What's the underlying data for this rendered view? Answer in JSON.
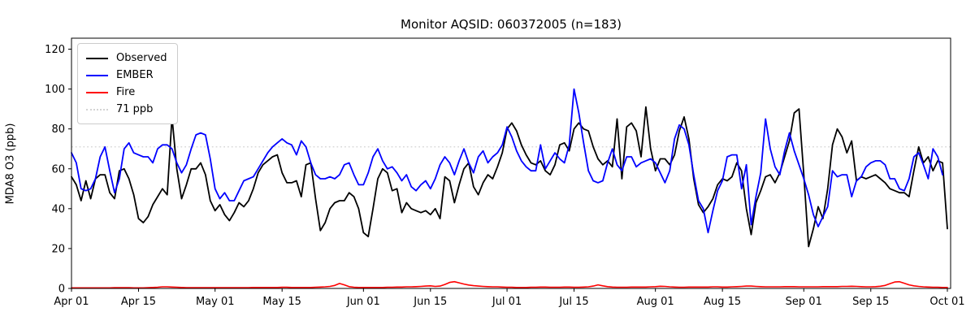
{
  "title": "Monitor AQSID: 060372005 (n=183)",
  "ylabel": "MDA8 O3 (ppb)",
  "legend": [
    {
      "label": "Observed",
      "color": "#000000",
      "style": "solid"
    },
    {
      "label": "EMBER",
      "color": "#0000ff",
      "style": "solid"
    },
    {
      "label": "Fire",
      "color": "#ff0000",
      "style": "solid"
    },
    {
      "label": "71 ppb",
      "color": "#d3d3d3",
      "style": "dotted"
    }
  ],
  "chart_data": {
    "type": "line",
    "title": "Monitor AQSID: 060372005 (n=183)",
    "xlabel": "",
    "ylabel": "MDA8 O3 (ppb)",
    "ylim": [
      0,
      125
    ],
    "y_ticks": [
      0,
      20,
      40,
      60,
      80,
      100,
      120
    ],
    "x_unit": "days since Apr 01",
    "x_range_days": [
      0,
      183
    ],
    "x_tick_days": [
      0,
      14,
      30,
      44,
      61,
      75,
      91,
      105,
      122,
      136,
      153,
      167,
      183
    ],
    "x_tick_labels": [
      "Apr 01",
      "Apr 15",
      "May 01",
      "May 15",
      "Jun 01",
      "Jun 15",
      "Jul 01",
      "Jul 15",
      "Aug 01",
      "Aug 15",
      "Sep 01",
      "Sep 15",
      "Oct 01"
    ],
    "grid": false,
    "legend_position": "upper left",
    "reference_line": {
      "value": 71,
      "label": "71 ppb",
      "color": "#d3d3d3",
      "style": "dotted"
    },
    "series": [
      {
        "name": "Observed",
        "color": "#000000",
        "values": [
          56,
          52,
          44,
          54,
          45,
          55,
          57,
          57,
          48,
          45,
          59,
          60,
          55,
          47,
          35,
          33,
          36,
          42,
          46,
          50,
          47,
          86,
          60,
          45,
          52,
          60,
          60,
          63,
          57,
          44,
          39,
          42,
          37,
          34,
          38,
          43,
          41,
          44,
          50,
          58,
          62,
          64,
          66,
          67,
          58,
          53,
          53,
          54,
          46,
          62,
          63,
          45,
          29,
          33,
          40,
          43,
          44,
          44,
          48,
          46,
          40,
          28,
          26,
          40,
          55,
          60,
          58,
          49,
          50,
          38,
          43,
          40,
          39,
          38,
          39,
          37,
          40,
          35,
          56,
          54,
          43,
          52,
          60,
          63,
          51,
          47,
          53,
          57,
          55,
          61,
          68,
          80,
          83,
          79,
          72,
          67,
          63,
          62,
          64,
          59,
          57,
          62,
          72,
          73,
          69,
          80,
          83,
          80,
          79,
          71,
          65,
          62,
          64,
          61,
          85,
          55,
          81,
          83,
          79,
          66,
          91,
          70,
          59,
          65,
          65,
          62,
          67,
          79,
          86,
          75,
          55,
          42,
          38,
          41,
          45,
          52,
          55,
          54,
          56,
          63,
          59,
          40,
          27,
          43,
          49,
          56,
          57,
          53,
          58,
          66,
          74,
          88,
          90,
          57,
          21,
          30,
          41,
          35,
          50,
          72,
          80,
          76,
          68,
          74,
          54,
          56,
          55,
          56,
          57,
          55,
          53,
          50,
          49,
          48,
          48,
          46,
          59,
          71,
          63,
          66,
          59,
          64,
          63,
          30
        ]
      },
      {
        "name": "EMBER",
        "color": "#0000ff",
        "values": [
          68,
          63,
          50,
          49,
          50,
          55,
          66,
          71,
          59,
          48,
          55,
          70,
          73,
          68,
          67,
          66,
          66,
          63,
          70,
          72,
          72,
          70,
          63,
          58,
          62,
          70,
          77,
          78,
          77,
          65,
          50,
          45,
          48,
          44,
          44,
          49,
          54,
          55,
          56,
          60,
          64,
          68,
          71,
          73,
          75,
          73,
          72,
          67,
          74,
          71,
          63,
          57,
          55,
          55,
          56,
          55,
          57,
          62,
          63,
          57,
          52,
          52,
          58,
          66,
          70,
          64,
          60,
          61,
          58,
          54,
          57,
          51,
          49,
          52,
          54,
          50,
          55,
          62,
          66,
          63,
          57,
          64,
          70,
          63,
          58,
          66,
          69,
          63,
          66,
          68,
          72,
          81,
          76,
          69,
          64,
          61,
          59,
          59,
          72,
          60,
          64,
          68,
          65,
          63,
          72,
          100,
          88,
          73,
          59,
          54,
          53,
          54,
          63,
          70,
          62,
          59,
          66,
          66,
          61,
          63,
          64,
          65,
          63,
          58,
          53,
          59,
          75,
          82,
          80,
          72,
          57,
          44,
          40,
          28,
          39,
          49,
          54,
          66,
          67,
          67,
          50,
          62,
          32,
          46,
          58,
          85,
          70,
          61,
          57,
          69,
          78,
          69,
          62,
          55,
          47,
          37,
          31,
          36,
          41,
          59,
          56,
          57,
          57,
          46,
          54,
          56,
          61,
          63,
          64,
          64,
          62,
          55,
          55,
          50,
          49,
          55,
          66,
          68,
          62,
          55,
          70,
          66,
          57,
          null
        ]
      },
      {
        "name": "Fire",
        "color": "#ff0000",
        "values": [
          0.3,
          0.3,
          0.3,
          0.3,
          0.3,
          0.3,
          0.3,
          0.3,
          0.3,
          0.4,
          0.4,
          0.4,
          0.4,
          0.3,
          0.3,
          0.3,
          0.4,
          0.5,
          0.6,
          0.8,
          0.8,
          0.7,
          0.6,
          0.5,
          0.4,
          0.4,
          0.4,
          0.4,
          0.4,
          0.4,
          0.4,
          0.4,
          0.4,
          0.4,
          0.4,
          0.4,
          0.4,
          0.4,
          0.5,
          0.5,
          0.5,
          0.5,
          0.5,
          0.5,
          0.6,
          0.6,
          0.5,
          0.5,
          0.5,
          0.5,
          0.5,
          0.6,
          0.7,
          0.8,
          1.0,
          1.5,
          2.5,
          1.8,
          0.9,
          0.6,
          0.5,
          0.5,
          0.5,
          0.5,
          0.5,
          0.5,
          0.6,
          0.6,
          0.7,
          0.7,
          0.8,
          0.8,
          0.9,
          1.0,
          1.2,
          1.3,
          1.0,
          1.2,
          2.0,
          3.0,
          3.4,
          2.8,
          2.2,
          1.7,
          1.4,
          1.2,
          1.0,
          0.9,
          0.8,
          0.8,
          0.7,
          0.6,
          0.6,
          0.5,
          0.5,
          0.5,
          0.6,
          0.6,
          0.7,
          0.7,
          0.6,
          0.6,
          0.6,
          0.7,
          0.7,
          0.6,
          0.6,
          0.7,
          0.8,
          1.2,
          1.8,
          1.3,
          0.9,
          0.7,
          0.6,
          0.6,
          0.6,
          0.7,
          0.7,
          0.7,
          0.7,
          0.8,
          0.9,
          1.1,
          1.0,
          0.8,
          0.7,
          0.6,
          0.6,
          0.7,
          0.7,
          0.7,
          0.7,
          0.7,
          0.8,
          0.8,
          0.7,
          0.7,
          0.8,
          0.9,
          1.0,
          1.2,
          1.2,
          1.0,
          0.9,
          0.8,
          0.8,
          0.8,
          0.8,
          0.9,
          0.9,
          0.9,
          0.8,
          0.8,
          0.8,
          0.8,
          0.8,
          0.9,
          0.9,
          0.9,
          0.9,
          1.0,
          1.0,
          1.1,
          1.0,
          0.9,
          0.8,
          0.8,
          0.9,
          1.1,
          1.5,
          2.4,
          3.2,
          3.4,
          2.6,
          1.8,
          1.3,
          1.0,
          0.8,
          0.7,
          0.6,
          0.6,
          0.5,
          0.5
        ]
      }
    ]
  }
}
